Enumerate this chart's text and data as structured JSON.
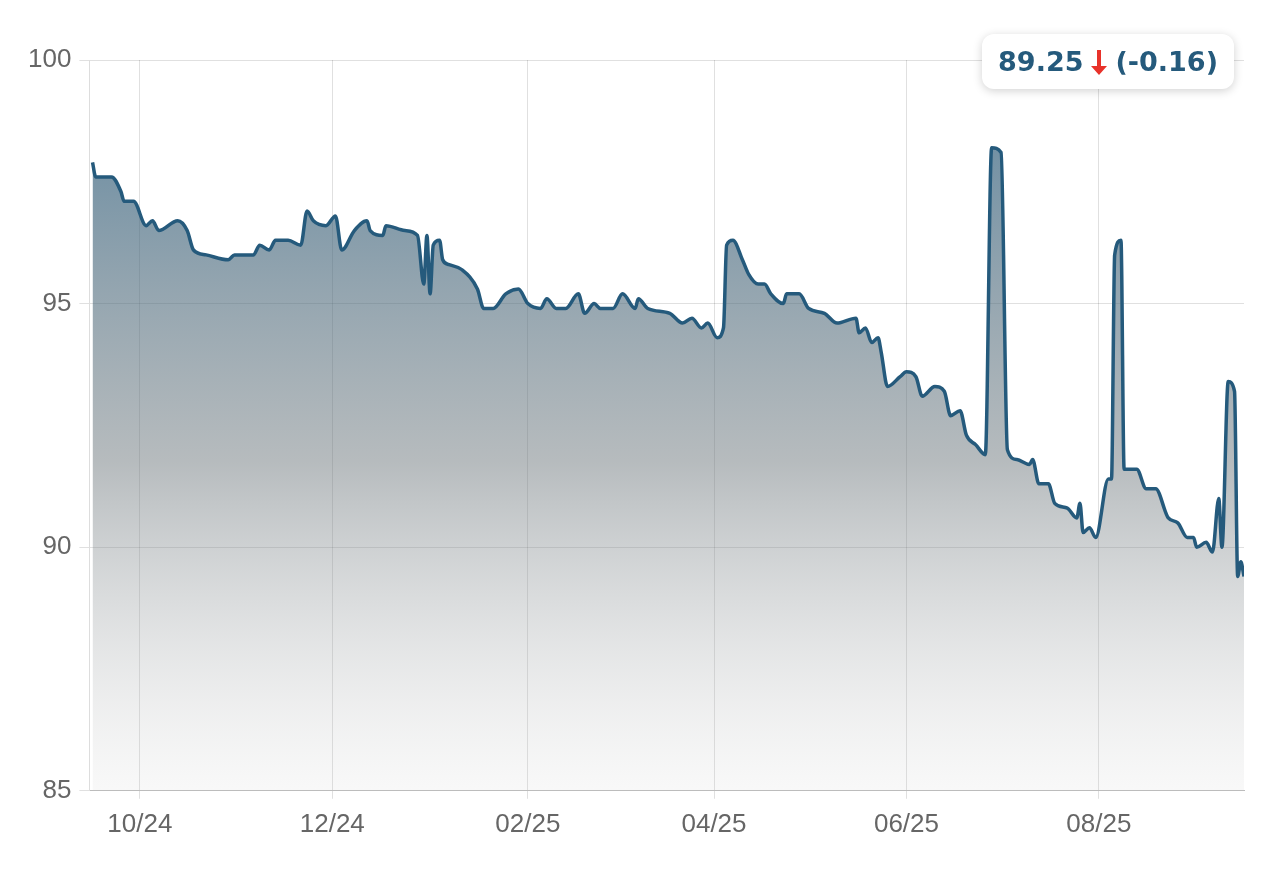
{
  "chart_data": {
    "type": "area",
    "xlim": [
      "2024-09-15",
      "2025-09-16"
    ],
    "xticks": [
      {
        "value": "2024-10-01",
        "label": "10/24"
      },
      {
        "value": "2024-12-01",
        "label": "12/24"
      },
      {
        "value": "2025-02-01",
        "label": "02/25"
      },
      {
        "value": "2025-04-01",
        "label": "04/25"
      },
      {
        "value": "2025-06-01",
        "label": "06/25"
      },
      {
        "value": "2025-08-01",
        "label": "08/25"
      }
    ],
    "ylim": [
      85,
      100
    ],
    "yticks": [
      85,
      90,
      95,
      100
    ],
    "grid": true,
    "legend": false,
    "marker": "none",
    "line_style": "solid",
    "x": [
      "2024-09-16",
      "2024-09-17",
      "2024-09-22",
      "2024-09-25",
      "2024-09-26",
      "2024-09-29",
      "2024-10-03",
      "2024-10-05",
      "2024-10-07",
      "2024-10-13",
      "2024-10-16",
      "2024-10-18",
      "2024-10-22",
      "2024-10-29",
      "2024-10-31",
      "2024-11-06",
      "2024-11-08",
      "2024-11-11",
      "2024-11-13",
      "2024-11-17",
      "2024-11-21",
      "2024-11-23",
      "2024-11-25",
      "2024-11-29",
      "2024-12-02",
      "2024-12-04",
      "2024-12-08",
      "2024-12-12",
      "2024-12-13",
      "2024-12-17",
      "2024-12-18",
      "2024-12-24",
      "2024-12-28",
      "2024-12-30",
      "2024-12-31",
      "2025-01-01",
      "2025-01-02",
      "2025-01-04",
      "2025-01-05",
      "2025-01-07",
      "2025-01-11",
      "2025-01-16",
      "2025-01-18",
      "2025-01-21",
      "2025-01-25",
      "2025-01-29",
      "2025-02-01",
      "2025-02-05",
      "2025-02-07",
      "2025-02-10",
      "2025-02-13",
      "2025-02-17",
      "2025-02-19",
      "2025-02-22",
      "2025-02-24",
      "2025-02-28",
      "2025-03-03",
      "2025-03-07",
      "2025-03-08",
      "2025-03-11",
      "2025-03-18",
      "2025-03-22",
      "2025-03-25",
      "2025-03-28",
      "2025-03-30",
      "2025-04-02",
      "2025-04-04",
      "2025-04-05",
      "2025-04-07",
      "2025-04-10",
      "2025-04-12",
      "2025-04-15",
      "2025-04-17",
      "2025-04-19",
      "2025-04-23",
      "2025-04-24",
      "2025-04-28",
      "2025-05-01",
      "2025-05-06",
      "2025-05-10",
      "2025-05-16",
      "2025-05-17",
      "2025-05-19",
      "2025-05-21",
      "2025-05-23",
      "2025-05-24",
      "2025-05-26",
      "2025-05-30",
      "2025-06-01",
      "2025-06-04",
      "2025-06-06",
      "2025-06-10",
      "2025-06-13",
      "2025-06-15",
      "2025-06-18",
      "2025-06-20",
      "2025-06-23",
      "2025-06-26",
      "2025-06-28",
      "2025-07-01",
      "2025-07-03",
      "2025-07-06",
      "2025-07-10",
      "2025-07-11",
      "2025-07-13",
      "2025-07-16",
      "2025-07-18",
      "2025-07-22",
      "2025-07-25",
      "2025-07-26",
      "2025-07-27",
      "2025-07-29",
      "2025-07-31",
      "2025-08-04",
      "2025-08-05",
      "2025-08-06",
      "2025-08-08",
      "2025-08-09",
      "2025-08-13",
      "2025-08-16",
      "2025-08-19",
      "2025-08-23",
      "2025-08-26",
      "2025-08-29",
      "2025-08-31",
      "2025-09-01",
      "2025-09-04",
      "2025-09-06",
      "2025-09-08",
      "2025-09-09",
      "2025-09-11",
      "2025-09-13",
      "2025-09-14",
      "2025-09-15",
      "2025-09-16"
    ],
    "series": [
      {
        "color": "#255a7c",
        "values": [
          97.9,
          97.6,
          97.6,
          97.3,
          97.1,
          97.1,
          96.6,
          96.7,
          96.5,
          96.7,
          96.5,
          96.1,
          96.0,
          95.9,
          96.0,
          96.0,
          96.2,
          96.1,
          96.3,
          96.3,
          96.2,
          96.9,
          96.7,
          96.6,
          96.8,
          96.1,
          96.5,
          96.7,
          96.5,
          96.4,
          96.6,
          96.5,
          96.4,
          95.4,
          96.4,
          95.2,
          96.2,
          96.3,
          95.9,
          95.8,
          95.7,
          95.3,
          94.9,
          94.9,
          95.2,
          95.3,
          95.0,
          94.9,
          95.1,
          94.9,
          94.9,
          95.2,
          94.8,
          95.0,
          94.9,
          94.9,
          95.2,
          94.9,
          95.1,
          94.9,
          94.8,
          94.6,
          94.7,
          94.5,
          94.6,
          94.3,
          94.5,
          96.2,
          96.3,
          95.9,
          95.6,
          95.4,
          95.4,
          95.2,
          95.0,
          95.2,
          95.2,
          94.9,
          94.8,
          94.6,
          94.7,
          94.4,
          94.5,
          94.2,
          94.3,
          94.0,
          93.3,
          93.5,
          93.6,
          93.5,
          93.1,
          93.3,
          93.2,
          92.7,
          92.8,
          92.3,
          92.1,
          91.9,
          98.2,
          98.1,
          92.0,
          91.8,
          91.7,
          91.8,
          91.3,
          91.3,
          90.9,
          90.8,
          90.6,
          90.9,
          90.3,
          90.4,
          90.2,
          91.4,
          91.4,
          96.0,
          96.3,
          91.6,
          91.6,
          91.2,
          91.2,
          90.6,
          90.5,
          90.2,
          90.2,
          90.0,
          90.1,
          89.9,
          91.0,
          90.0,
          93.4,
          93.2,
          89.4,
          89.7,
          89.4
        ]
      }
    ],
    "annotations": [
      "89.25",
      "(-0.16)"
    ]
  }
}
